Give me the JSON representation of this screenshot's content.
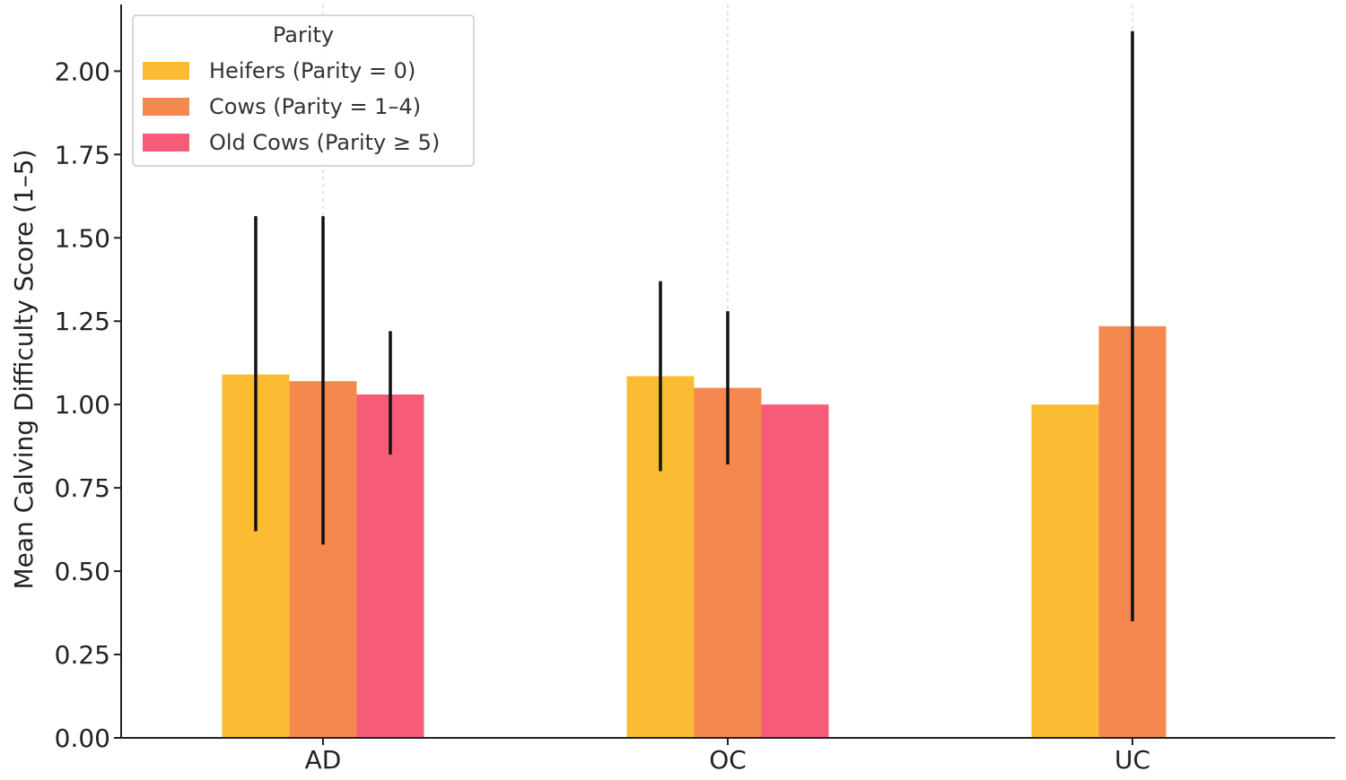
{
  "chart_data": {
    "type": "bar",
    "title": "",
    "xlabel": "",
    "ylabel": "Mean Calving Difficulty Score (1–5)",
    "categories": [
      "AD",
      "OC",
      "UC"
    ],
    "ylim": [
      0,
      2.2
    ],
    "yticks": [
      "0.00",
      "0.25",
      "0.50",
      "0.75",
      "1.00",
      "1.25",
      "1.50",
      "1.75",
      "2.00"
    ],
    "grid": "x-dashed",
    "legend": {
      "title": "Parity",
      "placement": "top-left"
    },
    "series": [
      {
        "name": "Heifers (Parity = 0)",
        "color": "#FBBC33",
        "values": [
          1.09,
          1.085,
          1.0
        ],
        "err_low": [
          0.62,
          0.8,
          null
        ],
        "err_high": [
          1.565,
          1.37,
          null
        ]
      },
      {
        "name": "Cows (Parity = 1–4)",
        "color": "#F4884F",
        "values": [
          1.07,
          1.05,
          1.235
        ],
        "err_low": [
          0.58,
          0.82,
          0.35
        ],
        "err_high": [
          1.565,
          1.28,
          2.12
        ]
      },
      {
        "name": "Old Cows (Parity ≥ 5)",
        "color": "#F65C78",
        "values": [
          1.03,
          1.0,
          null
        ],
        "err_low": [
          0.85,
          null,
          null
        ],
        "err_high": [
          1.22,
          null,
          null
        ]
      }
    ]
  }
}
